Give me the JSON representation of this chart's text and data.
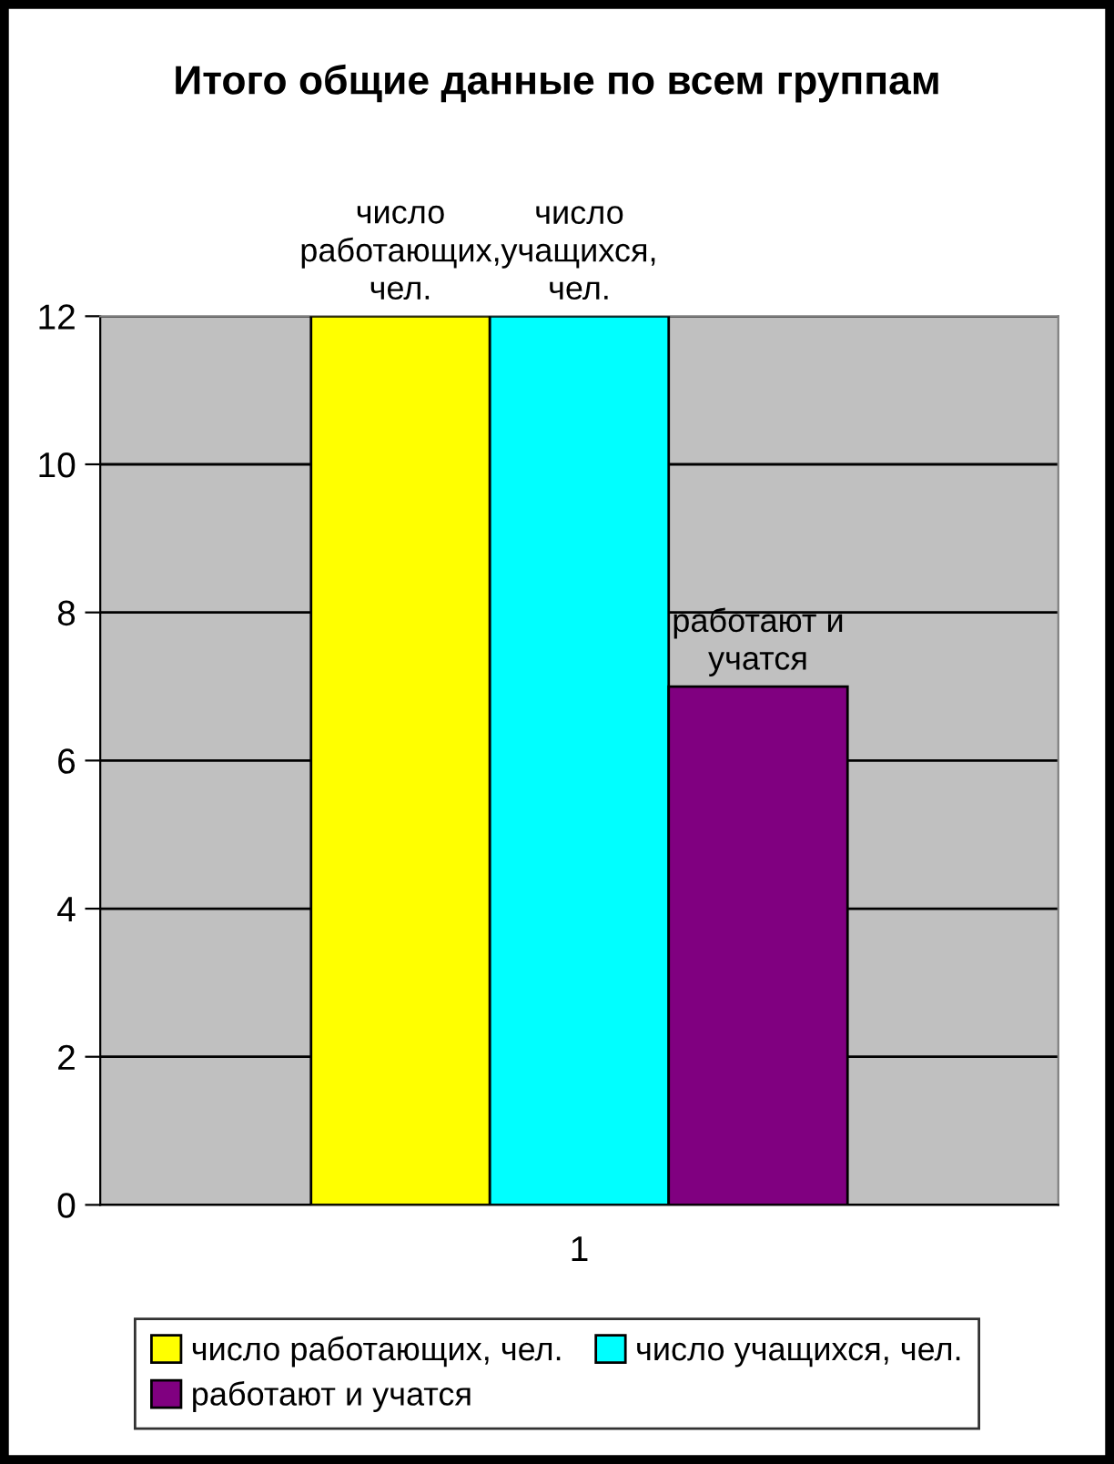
{
  "chart_data": {
    "type": "bar",
    "title": "Итого общие данные по всем группам",
    "categories": [
      "1"
    ],
    "series": [
      {
        "name": "число работающих, чел.",
        "color": "#ffff00",
        "values": [
          12
        ],
        "value_labels": [
          "число работающих, чел."
        ]
      },
      {
        "name": "число учащихся, чел.",
        "color": "#00ffff",
        "values": [
          12
        ],
        "value_labels": [
          "число учащихся, чел."
        ]
      },
      {
        "name": "работают и учатся",
        "color": "#800080",
        "values": [
          7
        ],
        "value_labels": [
          "работают и учатся"
        ]
      }
    ],
    "ylim": [
      0,
      12
    ],
    "yticks": [
      0,
      2,
      4,
      6,
      8,
      10,
      12
    ],
    "grid": "y",
    "legend": "bottom"
  }
}
